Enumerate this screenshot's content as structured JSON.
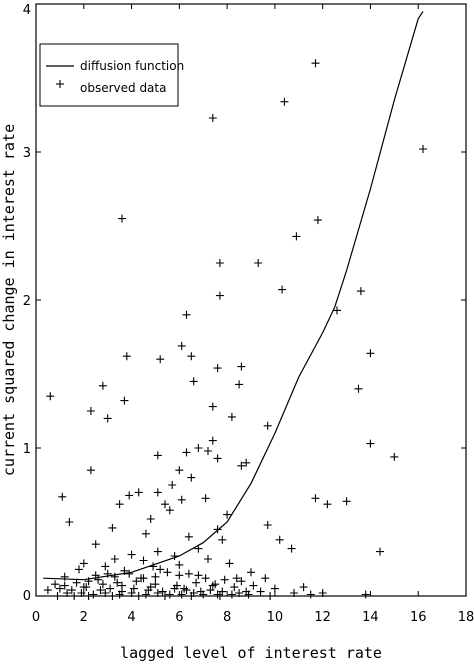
{
  "chart_data": {
    "type": "scatter",
    "title": "",
    "xlabel": "lagged level of interest rate",
    "ylabel": "current squared change in interest rate",
    "xlim": [
      0,
      18
    ],
    "ylim": [
      0,
      4
    ],
    "x_ticks": [
      0,
      2,
      4,
      6,
      8,
      10,
      12,
      14,
      16,
      18
    ],
    "y_ticks": [
      0,
      1,
      2,
      3,
      4
    ],
    "x_tick_labels": [
      "0",
      "2",
      "4",
      "6",
      "8",
      "10",
      "12",
      "14",
      "16",
      "18"
    ],
    "y_tick_labels": [
      "0",
      "1",
      "2",
      "3",
      "4"
    ],
    "grid": false,
    "legend": {
      "placement": "top-left",
      "entries": [
        {
          "label": "diffusion function",
          "marker": "line"
        },
        {
          "label": "observed data",
          "marker": "plus"
        }
      ]
    },
    "series": [
      {
        "name": "diffusion function",
        "type": "line",
        "x": [
          0.3,
          2,
          4,
          6,
          7,
          8,
          9,
          10,
          11,
          12,
          12.5,
          13,
          14,
          15,
          16,
          16.2
        ],
        "y": [
          0.12,
          0.11,
          0.16,
          0.27,
          0.36,
          0.5,
          0.76,
          1.1,
          1.48,
          1.78,
          1.95,
          2.2,
          2.75,
          3.35,
          3.9,
          3.95
        ]
      },
      {
        "name": "observed data",
        "type": "scatter",
        "marker": "plus",
        "x": [
          11.7,
          7.4,
          10.4,
          16.2,
          3.6,
          11.8,
          10.9,
          7.7,
          9.3,
          7.7,
          13.6,
          10.3,
          12.6,
          6.3,
          6.1,
          3.8,
          6.5,
          8.6,
          5.2,
          2.8,
          14.0,
          8.5,
          7.6,
          6.6,
          0.6,
          13.5,
          2.3,
          3.7,
          7.4,
          3.0,
          8.2,
          9.7,
          7.4,
          14.0,
          6.3,
          6.8,
          7.2,
          5.1,
          8.8,
          2.3,
          7.6,
          6.0,
          15.0,
          8.6,
          6.5,
          5.7,
          4.3,
          1.1,
          3.9,
          6.1,
          5.1,
          7.1,
          5.4,
          3.5,
          11.7,
          12.2,
          13.0,
          8.0,
          4.8,
          1.4,
          5.6,
          7.6,
          9.7,
          4.6,
          3.2,
          10.2,
          6.4,
          7.8,
          10.7,
          2.5,
          5.1,
          14.4,
          4.0,
          6.8,
          2.0,
          3.3,
          4.5,
          5.8,
          8.1,
          1.8,
          2.9,
          4.9,
          6.0,
          7.2,
          3.0,
          9.0,
          1.2,
          3.7,
          5.2,
          6.8,
          8.4,
          2.2,
          4.4,
          0.8,
          1.7,
          2.6,
          3.4,
          4.2,
          5.0,
          5.9,
          6.7,
          7.5,
          8.3,
          9.1,
          10.0,
          11.2,
          0.5,
          1.0,
          1.5,
          2.1,
          2.7,
          3.1,
          3.6,
          4.1,
          4.7,
          5.3,
          5.8,
          6.3,
          6.9,
          7.3,
          7.8,
          8.5,
          9.4,
          10.8,
          12.0,
          1.3,
          1.9,
          2.4,
          2.9,
          3.5,
          4.0,
          4.6,
          5.1,
          5.6,
          6.1,
          6.6,
          7.0,
          7.6,
          8.2,
          8.9,
          9.8,
          11.5,
          13.8,
          2.2,
          3.2,
          4.3,
          5.4,
          6.5,
          7.7,
          0.9,
          1.6,
          2.5,
          3.3,
          3.9,
          4.5,
          5.0,
          5.5,
          6.0,
          6.4,
          7.1,
          7.9,
          8.6,
          9.6,
          1.2,
          2.0,
          2.8,
          3.6,
          4.8,
          6.2,
          7.4,
          8.8
        ],
        "y": [
          3.6,
          3.23,
          3.34,
          3.02,
          2.55,
          2.54,
          2.43,
          2.25,
          2.25,
          2.03,
          2.06,
          2.07,
          1.93,
          1.9,
          1.69,
          1.62,
          1.62,
          1.55,
          1.6,
          1.42,
          1.64,
          1.43,
          1.54,
          1.45,
          1.35,
          1.4,
          1.25,
          1.32,
          1.28,
          1.2,
          1.21,
          1.15,
          1.05,
          1.03,
          0.97,
          1.0,
          0.98,
          0.95,
          0.9,
          0.85,
          0.93,
          0.85,
          0.94,
          0.88,
          0.8,
          0.75,
          0.7,
          0.67,
          0.68,
          0.65,
          0.7,
          0.66,
          0.62,
          0.62,
          0.66,
          0.62,
          0.64,
          0.55,
          0.52,
          0.5,
          0.58,
          0.45,
          0.48,
          0.42,
          0.46,
          0.38,
          0.4,
          0.38,
          0.32,
          0.35,
          0.3,
          0.3,
          0.28,
          0.32,
          0.22,
          0.25,
          0.24,
          0.27,
          0.22,
          0.18,
          0.2,
          0.2,
          0.21,
          0.25,
          0.15,
          0.16,
          0.13,
          0.17,
          0.18,
          0.14,
          0.12,
          0.1,
          0.12,
          0.08,
          0.09,
          0.11,
          0.09,
          0.1,
          0.08,
          0.07,
          0.09,
          0.08,
          0.06,
          0.07,
          0.05,
          0.06,
          0.04,
          0.05,
          0.04,
          0.06,
          0.04,
          0.05,
          0.03,
          0.05,
          0.04,
          0.03,
          0.05,
          0.04,
          0.03,
          0.04,
          0.03,
          0.02,
          0.03,
          0.02,
          0.02,
          0.02,
          0.02,
          0.01,
          0.02,
          0.01,
          0.02,
          0.01,
          0.02,
          0.01,
          0.01,
          0.02,
          0.01,
          0.01,
          0.01,
          0.01,
          0.0,
          0.01,
          0.01,
          0.0,
          0.0,
          0.0,
          0.0,
          0.0,
          0.0,
          0.0,
          0.0,
          0.14,
          0.13,
          0.15,
          0.12,
          0.13,
          0.16,
          0.14,
          0.15,
          0.12,
          0.11,
          0.1,
          0.12,
          0.07,
          0.06,
          0.08,
          0.07,
          0.06,
          0.05,
          0.07,
          0.03
        ]
      }
    ]
  }
}
